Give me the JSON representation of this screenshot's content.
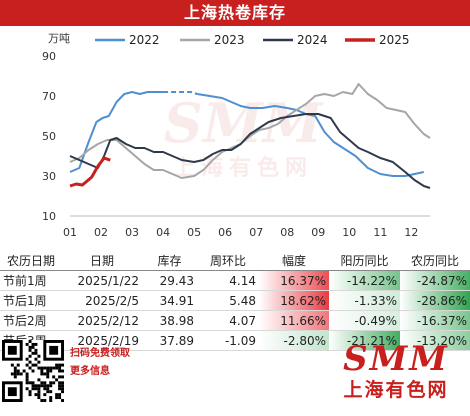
{
  "title": "上海热卷库存",
  "chart_data": {
    "type": "line",
    "unit_label": "万吨",
    "ylim": [
      10,
      90
    ],
    "yticks": [
      10,
      30,
      50,
      70,
      90
    ],
    "x_tick_labels": [
      "01",
      "02",
      "03",
      "04",
      "05",
      "06",
      "07",
      "08",
      "09",
      "10",
      "11",
      "12"
    ],
    "x_range": [
      1,
      12.6
    ],
    "legend_position": "top",
    "series": [
      {
        "name": "2022",
        "color": "#4f8fd1",
        "points": [
          [
            1.0,
            32
          ],
          [
            1.3,
            34
          ],
          [
            1.6,
            47
          ],
          [
            1.85,
            57
          ],
          [
            2.05,
            59
          ],
          [
            2.25,
            60
          ],
          [
            2.5,
            67
          ],
          [
            2.75,
            71
          ],
          [
            3.0,
            72
          ],
          [
            3.25,
            71
          ],
          [
            3.5,
            72
          ],
          [
            4.0,
            72
          ],
          [
            4.5,
            72
          ],
          [
            4.9,
            72
          ],
          [
            5.1,
            71
          ],
          [
            5.5,
            70
          ],
          [
            5.9,
            69
          ],
          [
            6.2,
            67
          ],
          [
            6.5,
            65
          ],
          [
            6.8,
            64
          ],
          [
            7.2,
            64
          ],
          [
            7.6,
            65
          ],
          [
            8.0,
            64
          ],
          [
            8.3,
            63
          ],
          [
            8.6,
            61
          ],
          [
            8.9,
            60
          ],
          [
            9.2,
            52
          ],
          [
            9.5,
            47
          ],
          [
            9.8,
            44
          ],
          [
            10.2,
            40
          ],
          [
            10.6,
            34
          ],
          [
            11.0,
            31
          ],
          [
            11.4,
            30
          ],
          [
            11.8,
            30
          ],
          [
            12.1,
            31
          ],
          [
            12.4,
            32
          ]
        ],
        "dashed_from_x": 4.0,
        "dashed_to_x": 5.1
      },
      {
        "name": "2023",
        "color": "#a6a6a6",
        "points": [
          [
            1.0,
            37
          ],
          [
            1.3,
            39
          ],
          [
            1.6,
            43
          ],
          [
            1.9,
            46
          ],
          [
            2.2,
            48
          ],
          [
            2.5,
            48
          ],
          [
            2.8,
            44
          ],
          [
            3.1,
            40
          ],
          [
            3.4,
            36
          ],
          [
            3.7,
            33
          ],
          [
            4.0,
            33
          ],
          [
            4.3,
            31
          ],
          [
            4.6,
            29
          ],
          [
            5.0,
            30
          ],
          [
            5.3,
            33
          ],
          [
            5.6,
            38
          ],
          [
            5.9,
            42
          ],
          [
            6.2,
            44
          ],
          [
            6.5,
            46
          ],
          [
            6.8,
            50
          ],
          [
            7.1,
            53
          ],
          [
            7.4,
            54
          ],
          [
            7.7,
            56
          ],
          [
            8.0,
            60
          ],
          [
            8.3,
            63
          ],
          [
            8.6,
            66
          ],
          [
            8.9,
            70
          ],
          [
            9.2,
            71
          ],
          [
            9.5,
            70
          ],
          [
            9.8,
            72
          ],
          [
            10.1,
            71
          ],
          [
            10.3,
            76
          ],
          [
            10.6,
            71
          ],
          [
            10.9,
            68
          ],
          [
            11.2,
            64
          ],
          [
            11.5,
            63
          ],
          [
            11.8,
            62
          ],
          [
            12.1,
            56
          ],
          [
            12.4,
            51
          ],
          [
            12.6,
            49
          ]
        ]
      },
      {
        "name": "2024",
        "color": "#2e3a4b",
        "points": [
          [
            1.0,
            40
          ],
          [
            1.3,
            38
          ],
          [
            1.6,
            36
          ],
          [
            1.9,
            34
          ],
          [
            2.1,
            40
          ],
          [
            2.3,
            48
          ],
          [
            2.5,
            49
          ],
          [
            2.8,
            46
          ],
          [
            3.1,
            44
          ],
          [
            3.4,
            44
          ],
          [
            3.7,
            42
          ],
          [
            4.0,
            42
          ],
          [
            4.3,
            40
          ],
          [
            4.6,
            38
          ],
          [
            5.0,
            37
          ],
          [
            5.3,
            38
          ],
          [
            5.6,
            41
          ],
          [
            5.9,
            43
          ],
          [
            6.2,
            43
          ],
          [
            6.5,
            46
          ],
          [
            6.8,
            51
          ],
          [
            7.1,
            54
          ],
          [
            7.4,
            57
          ],
          [
            7.8,
            59
          ],
          [
            8.2,
            60
          ],
          [
            8.6,
            61
          ],
          [
            9.0,
            61
          ],
          [
            9.4,
            59
          ],
          [
            9.7,
            52
          ],
          [
            10.0,
            48
          ],
          [
            10.3,
            44
          ],
          [
            10.6,
            42
          ],
          [
            11.0,
            39
          ],
          [
            11.4,
            37
          ],
          [
            11.8,
            32
          ],
          [
            12.1,
            28
          ],
          [
            12.4,
            25
          ],
          [
            12.6,
            24
          ]
        ]
      },
      {
        "name": "2025",
        "color": "#c8201f",
        "points": [
          [
            1.0,
            25
          ],
          [
            1.2,
            26
          ],
          [
            1.4,
            25.5
          ],
          [
            1.7,
            29.43
          ],
          [
            1.9,
            34.91
          ],
          [
            2.1,
            38.98
          ],
          [
            2.3,
            37.89
          ]
        ]
      }
    ]
  },
  "table": {
    "headers": [
      "农历日期",
      "日期",
      "库存",
      "周环比",
      "幅度",
      "阳历同比",
      "农历同比"
    ],
    "rows": [
      {
        "label": "节前1周",
        "date": "2025/1/22",
        "stock": "29.43",
        "wow": "4.14",
        "range": "16.37%",
        "range_v": 16.37,
        "solar_yoy": "-14.22%",
        "solar_v": -14.22,
        "lunar_yoy": "-24.87%",
        "lunar_v": -24.87
      },
      {
        "label": "节后1周",
        "date": "2025/2/5",
        "stock": "34.91",
        "wow": "5.48",
        "range": "18.62%",
        "range_v": 18.62,
        "solar_yoy": "-1.33%",
        "solar_v": -1.33,
        "lunar_yoy": "-28.86%",
        "lunar_v": -28.86
      },
      {
        "label": "节后2周",
        "date": "2025/2/12",
        "stock": "38.98",
        "wow": "4.07",
        "range": "11.66%",
        "range_v": 11.66,
        "solar_yoy": "-0.49%",
        "solar_v": -0.49,
        "lunar_yoy": "-16.37%",
        "lunar_v": -16.37
      },
      {
        "label": "节后3周",
        "date": "2025/2/19",
        "stock": "37.89",
        "wow": "-1.09",
        "range": "-2.80%",
        "range_v": -2.8,
        "solar_yoy": "-21.21%",
        "solar_v": -21.21,
        "lunar_yoy": "-13.20%",
        "lunar_v": -13.2
      }
    ]
  },
  "footer": {
    "promo_line1": "扫码免费领取",
    "promo_line2": "更多信息",
    "brand_logo": "SMM",
    "brand_name": "上海有色网"
  },
  "colors": {
    "positive": "#e8222a",
    "negative": "#1a9d3e"
  }
}
